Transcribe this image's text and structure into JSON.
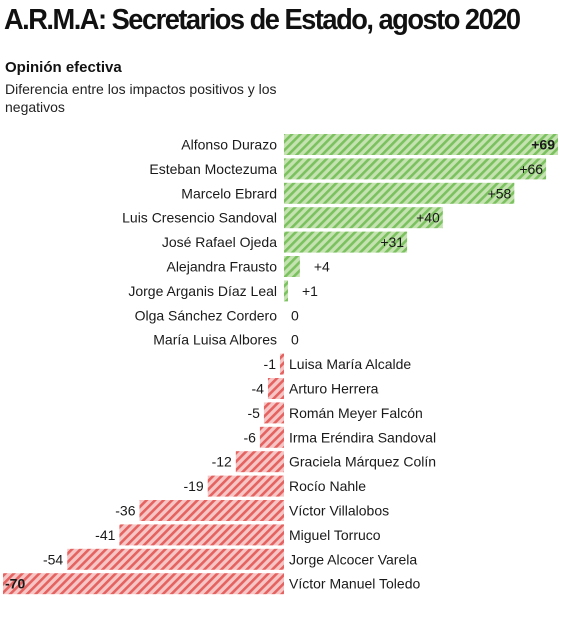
{
  "title": "A.R.M.A: Secretarios de Estado, agosto 2020",
  "subtitle": "Opinión efectiva",
  "description": "Diferencia entre los impactos positivos y los negativos",
  "colors": {
    "positive_fill": "#c5e3b1",
    "positive_stripe": "#7cc160",
    "negative_fill": "#f6c6c6",
    "negative_stripe": "#e4625f",
    "text": "#1a1a1a"
  },
  "chart_data": {
    "type": "bar",
    "orientation": "horizontal",
    "diverging": true,
    "title": "A.R.M.A: Secretarios de Estado, agosto 2020",
    "subtitle": "Opinión efectiva",
    "xlim": [
      -70,
      69
    ],
    "grid": false,
    "categories": [
      "Alfonso Durazo",
      "Esteban Moctezuma",
      "Marcelo Ebrard",
      "Luis Cresencio Sandoval",
      "José Rafael Ojeda",
      "Alejandra Frausto",
      "Jorge Arganis Díaz Leal",
      "Olga Sánchez Cordero",
      "María Luisa Albores",
      "Luisa María Alcalde",
      "Arturo Herrera",
      "Román Meyer Falcón",
      "Irma Eréndira Sandoval",
      "Graciela Márquez Colín",
      "Rocío Nahle",
      "Víctor Villalobos",
      "Miguel Torruco",
      "Jorge Alcocer Varela",
      "Víctor Manuel Toledo"
    ],
    "values": [
      69,
      66,
      58,
      40,
      31,
      4,
      1,
      0,
      0,
      -1,
      -4,
      -5,
      -6,
      -12,
      -19,
      -36,
      -41,
      -54,
      -70
    ],
    "labels": [
      "+69",
      "+66",
      "+58",
      "+40",
      "+31",
      "+4",
      "+1",
      "0",
      "0",
      "-1",
      "-4",
      "-5",
      "-6",
      "-12",
      "-19",
      "-36",
      "-41",
      "-54",
      "-70"
    ]
  }
}
